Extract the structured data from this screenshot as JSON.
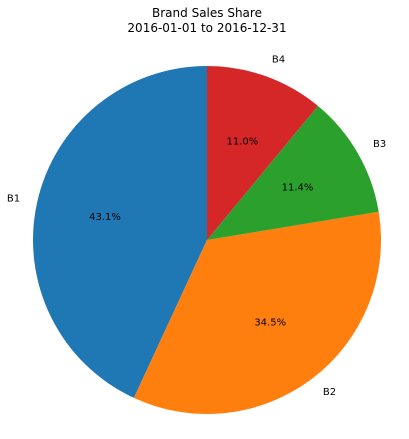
{
  "chart_data": {
    "type": "pie",
    "title": "Brand Sales Share",
    "subtitle": "2016-01-01 to 2016-12-31",
    "categories": [
      "B1",
      "B2",
      "B3",
      "B4"
    ],
    "values": [
      43.1,
      34.5,
      11.4,
      11.0
    ],
    "value_labels": [
      "43.1%",
      "34.5%",
      "11.4%",
      "11.0%"
    ],
    "colors": [
      "#1f77b4",
      "#ff7f0e",
      "#2ca02c",
      "#d62728"
    ],
    "start_angle_deg": 90,
    "direction": "counterclockwise",
    "legend": "none"
  }
}
